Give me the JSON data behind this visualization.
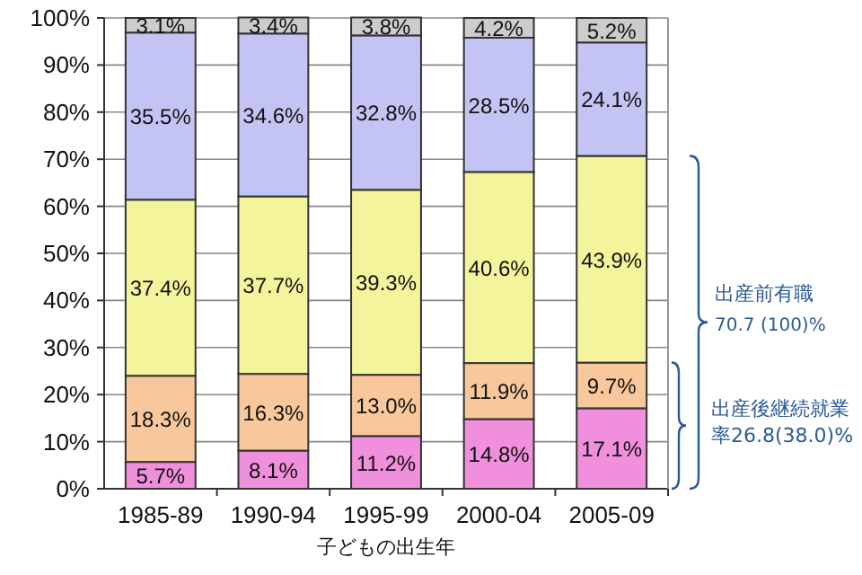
{
  "chart_data": {
    "type": "bar",
    "stacked": true,
    "xlabel": "子どもの出生年",
    "categories": [
      "1985-89",
      "1990-94",
      "1995-99",
      "2000-04",
      "2005-09"
    ],
    "series": [
      {
        "color": "#f090dc",
        "values": [
          5.7,
          8.1,
          11.2,
          14.8,
          17.1
        ],
        "value_labels": [
          "5.7%",
          "8.1%",
          "11.2%",
          "14.8%",
          "17.1%"
        ]
      },
      {
        "color": "#f8c89c",
        "values": [
          18.3,
          16.3,
          13.0,
          11.9,
          9.7
        ],
        "value_labels": [
          "18.3%",
          "16.3%",
          "13.0%",
          "11.9%",
          "9.7%"
        ]
      },
      {
        "color": "#f4f49c",
        "values": [
          37.4,
          37.7,
          39.3,
          40.6,
          43.9
        ],
        "value_labels": [
          "37.4%",
          "37.7%",
          "39.3%",
          "40.6%",
          "43.9%"
        ]
      },
      {
        "color": "#c4c4f4",
        "values": [
          35.5,
          34.6,
          32.8,
          28.5,
          24.1
        ],
        "value_labels": [
          "35.5%",
          "34.6%",
          "32.8%",
          "28.5%",
          "24.1%"
        ]
      },
      {
        "color": "#cccccc",
        "values": [
          3.1,
          3.4,
          3.8,
          4.2,
          5.2
        ],
        "value_labels": [
          "3.1%",
          "3.4%",
          "3.8%",
          "4.2%",
          "5.2%"
        ]
      }
    ],
    "ylim": [
      0,
      100
    ],
    "yticks": [
      {
        "value": 0,
        "label": "0%"
      },
      {
        "value": 10,
        "label": "10%"
      },
      {
        "value": 20,
        "label": "20%"
      },
      {
        "value": 30,
        "label": "30%"
      },
      {
        "value": 40,
        "label": "40%"
      },
      {
        "value": 50,
        "label": "50%"
      },
      {
        "value": 60,
        "label": "60%"
      },
      {
        "value": 70,
        "label": "70%"
      },
      {
        "value": 80,
        "label": "80%"
      },
      {
        "value": 90,
        "label": "90%"
      },
      {
        "value": 100,
        "label": "100%"
      }
    ],
    "grid": "y",
    "annotations": [
      "出産前有職",
      "70.7 (100)%",
      "出産後継続就業率26.8(38.0)%"
    ]
  }
}
